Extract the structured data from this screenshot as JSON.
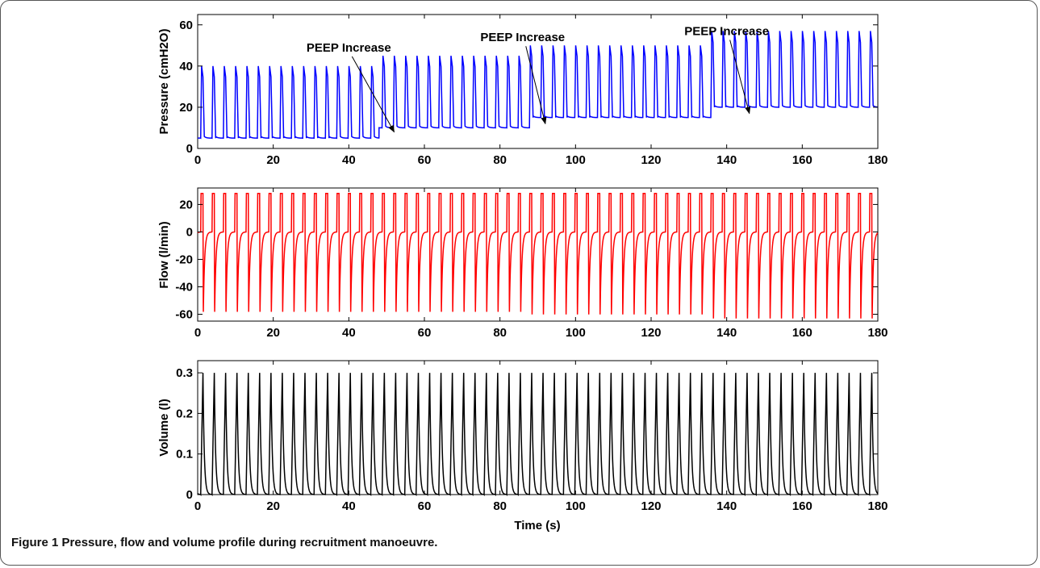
{
  "figure": {
    "caption_label": "Figure 1",
    "caption_text": "Pressure, flow and volume profile during recruitment manoeuvre."
  },
  "chart_data": [
    {
      "type": "line",
      "id": "pressure",
      "xlabel": "",
      "ylabel": "Pressure (cmH2O)",
      "xlim": [
        0,
        180
      ],
      "ylim": [
        0,
        65
      ],
      "xticks": [
        0,
        20,
        40,
        60,
        80,
        100,
        120,
        140,
        160,
        180
      ],
      "yticks": [
        0,
        20,
        40,
        60
      ],
      "color": "#0000ff",
      "breath_period_s": 3.0,
      "series": [
        {
          "segments": [
            {
              "t_start": 0,
              "t_end": 48,
              "baseline": 5,
              "peak": 40
            },
            {
              "t_start": 48,
              "t_end": 88,
              "baseline": 10,
              "peak": 45
            },
            {
              "t_start": 88,
              "t_end": 136,
              "baseline": 15,
              "peak": 50
            },
            {
              "t_start": 136,
              "t_end": 180,
              "baseline": 20,
              "peak": 57
            }
          ]
        }
      ],
      "annotations": [
        {
          "text": "PEEP Increase",
          "label_x": 40,
          "label_y": 47,
          "arrow_to_x": 52,
          "arrow_to_y": 8
        },
        {
          "text": "PEEP Increase",
          "label_x": 86,
          "label_y": 52,
          "arrow_to_x": 92,
          "arrow_to_y": 12
        },
        {
          "text": "PEEP Increase",
          "label_x": 140,
          "label_y": 55,
          "arrow_to_x": 146,
          "arrow_to_y": 17
        }
      ]
    },
    {
      "type": "line",
      "id": "flow",
      "xlabel": "",
      "ylabel": "Flow (l/min)",
      "xlim": [
        0,
        180
      ],
      "ylim": [
        -65,
        32
      ],
      "xticks": [
        0,
        20,
        40,
        60,
        80,
        100,
        120,
        140,
        160,
        180
      ],
      "yticks": [
        20,
        0,
        -20,
        -40,
        -60
      ],
      "color": "#ff0000",
      "breath_period_s": 3.0,
      "series": [
        {
          "segments": [
            {
              "t_start": 0,
              "t_end": 48,
              "inspiratory_peak": 28,
              "expiratory_peak": -60
            },
            {
              "t_start": 48,
              "t_end": 88,
              "inspiratory_peak": 28,
              "expiratory_peak": -60
            },
            {
              "t_start": 88,
              "t_end": 136,
              "inspiratory_peak": 28,
              "expiratory_peak": -62
            },
            {
              "t_start": 136,
              "t_end": 180,
              "inspiratory_peak": 28,
              "expiratory_peak": -65
            }
          ]
        }
      ]
    },
    {
      "type": "line",
      "id": "volume",
      "xlabel": "Time (s)",
      "ylabel": "Volume (l)",
      "xlim": [
        0,
        180
      ],
      "ylim": [
        0,
        0.33
      ],
      "xticks": [
        0,
        20,
        40,
        60,
        80,
        100,
        120,
        140,
        160,
        180
      ],
      "yticks": [
        0,
        0.1,
        0.2,
        0.3
      ],
      "color": "#000000",
      "breath_period_s": 3.0,
      "series": [
        {
          "peak": 0.3,
          "baseline": 0.0
        }
      ]
    }
  ]
}
